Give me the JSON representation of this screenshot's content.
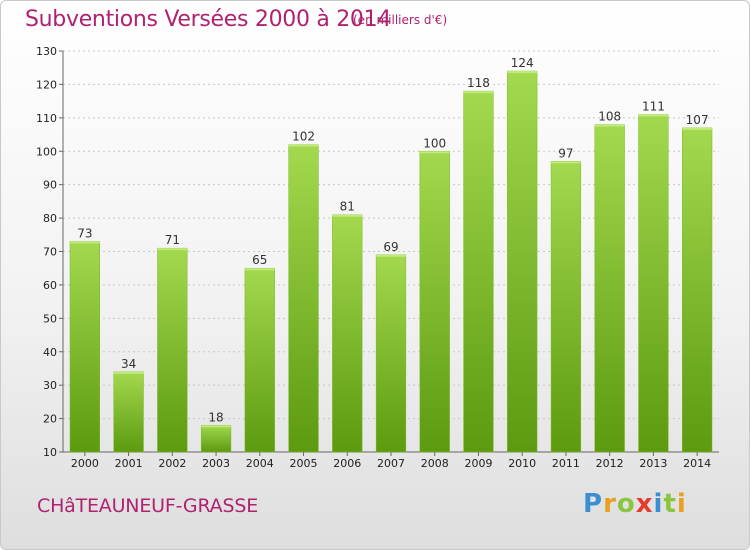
{
  "header": {
    "title": "Subventions Versées 2000 à 2014",
    "unit_note": "(en milliers d'€)"
  },
  "footer": {
    "commune": "CHâTEAUNEUF-GRASSE",
    "logo_text": "Proxiti"
  },
  "colors": {
    "accent": "#b0216f",
    "bar_light": "#9fd64a",
    "bar_dark": "#5f9e12"
  },
  "chart_data": {
    "type": "bar",
    "categories": [
      "2000",
      "2001",
      "2002",
      "2003",
      "2004",
      "2005",
      "2006",
      "2007",
      "2008",
      "2009",
      "2010",
      "2011",
      "2012",
      "2013",
      "2014"
    ],
    "values": [
      73,
      34,
      71,
      18,
      65,
      102,
      81,
      69,
      100,
      118,
      124,
      97,
      108,
      111,
      107
    ],
    "title": "Subventions Versées 2000 à 2014",
    "subtitle": "(en milliers d'€)",
    "xlabel": "",
    "ylabel": "",
    "ylim": [
      10,
      130
    ],
    "yticks": [
      10,
      20,
      30,
      40,
      50,
      60,
      70,
      80,
      90,
      100,
      110,
      120,
      130
    ],
    "grid": true,
    "legend": "none"
  }
}
